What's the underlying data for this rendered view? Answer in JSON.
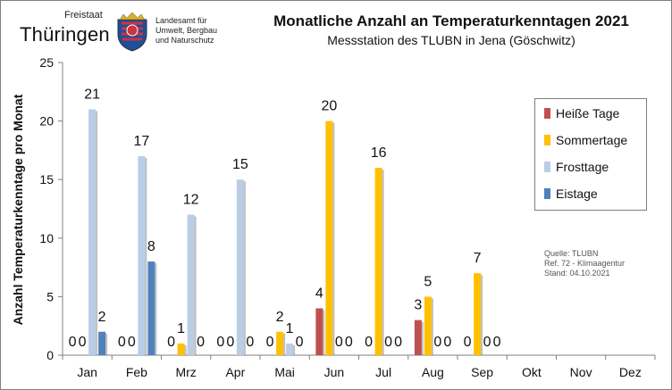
{
  "logo": {
    "top_text": "Freistaat",
    "main_text": "Thüringen",
    "side_lines": [
      "Landesamt für",
      "Umwelt, Bergbau",
      "und Naturschutz"
    ]
  },
  "source_note": {
    "lines": [
      "Quelle: TLUBN",
      "Ref. 72 - Klimaagentur",
      "Stand: 04.10.2021"
    ]
  },
  "chart_data": {
    "type": "bar",
    "title": "Monatliche Anzahl an Temperaturkenntagen 2021",
    "subtitle": "Messstation  des TLUBN  in Jena (Göschwitz)",
    "xlabel": "",
    "ylabel": "Anzahl Temperaturkenntage  pro Monat",
    "ylim": [
      0,
      25
    ],
    "yticks": [
      0,
      5,
      10,
      15,
      20,
      25
    ],
    "grid": false,
    "legend_position": "top-right",
    "categories": [
      "Jan",
      "Feb",
      "Mrz",
      "Apr",
      "Mai",
      "Jun",
      "Jul",
      "Aug",
      "Sep",
      "Okt",
      "Nov",
      "Dez"
    ],
    "series": [
      {
        "name": "Heiße Tage",
        "color": "#c0504d",
        "values": [
          0,
          0,
          0,
          0,
          0,
          4,
          0,
          3,
          0,
          null,
          null,
          null
        ]
      },
      {
        "name": "Sommertage",
        "color": "#ffc000",
        "values": [
          0,
          0,
          1,
          0,
          2,
          20,
          16,
          5,
          7,
          null,
          null,
          null
        ]
      },
      {
        "name": "Frosttage",
        "color": "#b9cde5",
        "values": [
          21,
          17,
          12,
          15,
          1,
          0,
          0,
          0,
          0,
          null,
          null,
          null
        ]
      },
      {
        "name": "Eistage",
        "color": "#4f81bd",
        "values": [
          2,
          8,
          0,
          0,
          0,
          0,
          0,
          0,
          0,
          null,
          null,
          null
        ]
      }
    ]
  }
}
